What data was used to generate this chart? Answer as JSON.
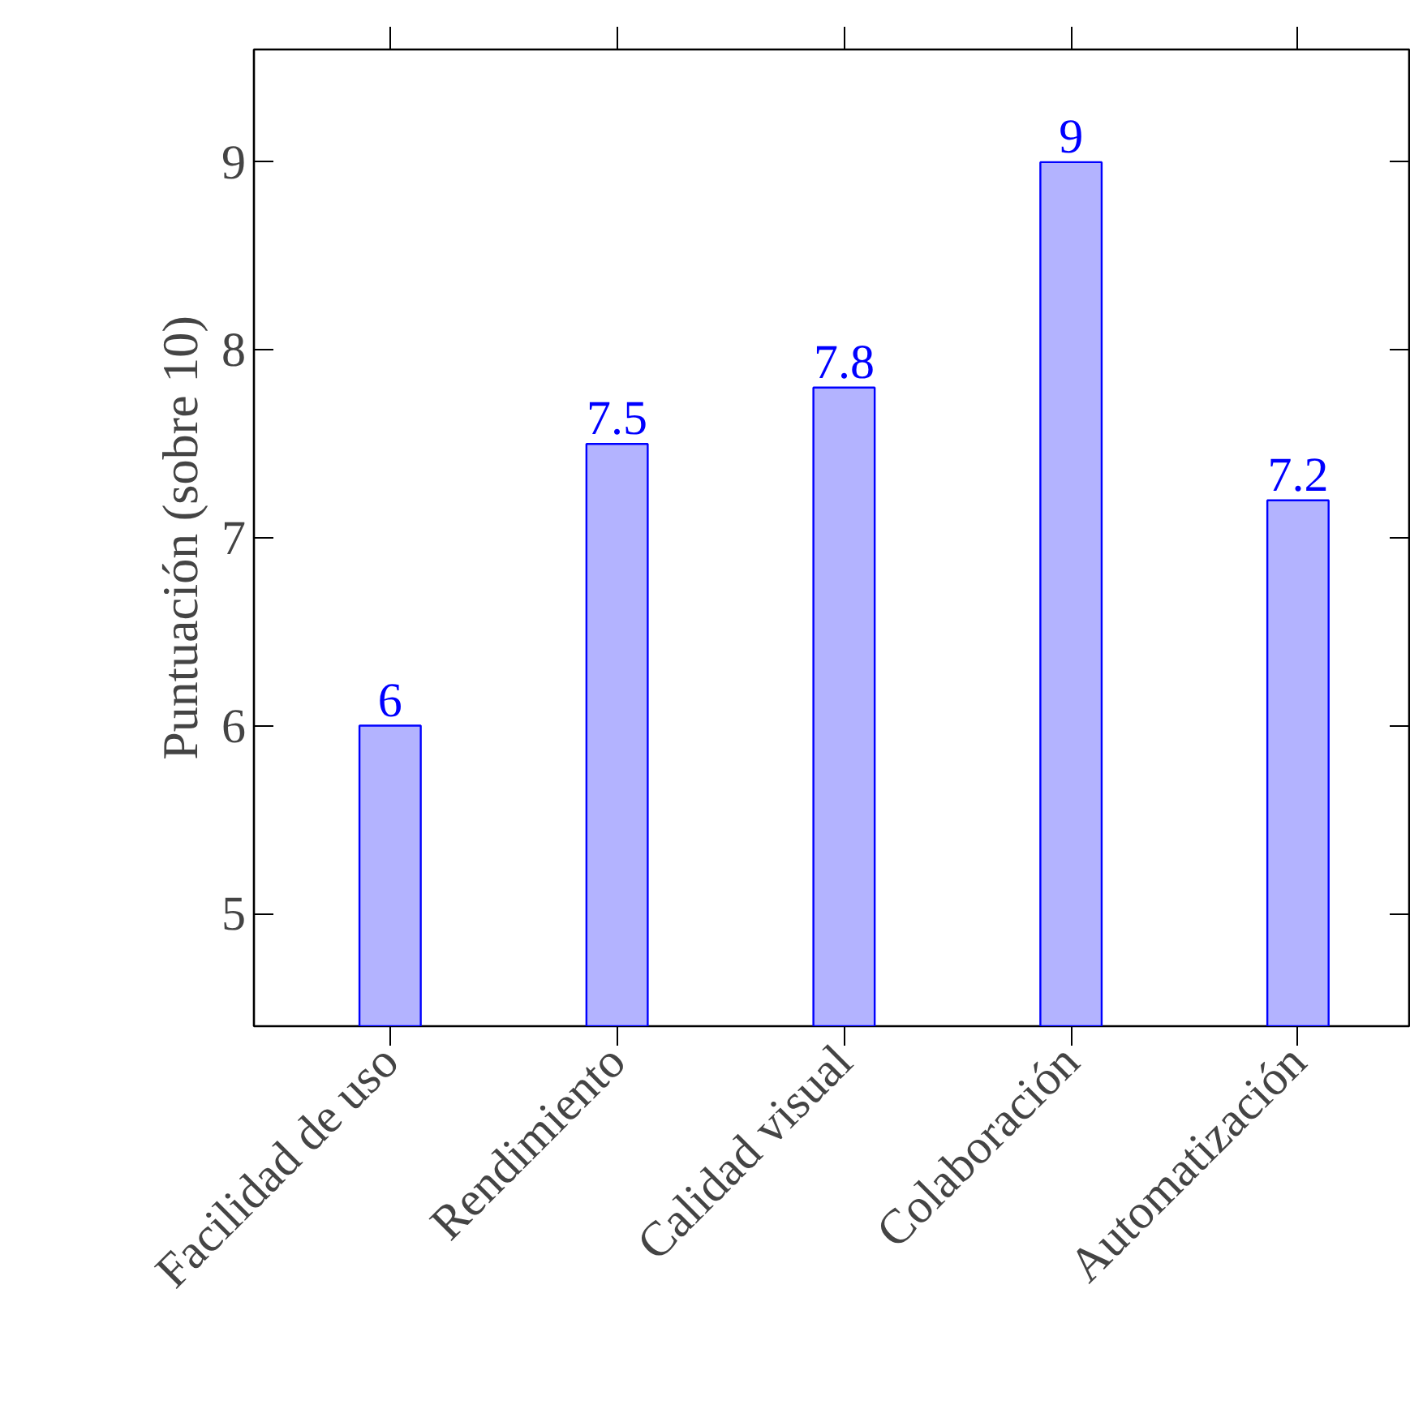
{
  "chart_data": {
    "type": "bar",
    "ylabel": "Puntuación (sobre 10)",
    "categories": [
      "Facilidad de uso",
      "Rendimiento",
      "Calidad visual",
      "Colaboración",
      "Automatización"
    ],
    "values": [
      6,
      7.5,
      7.8,
      9,
      7.2
    ],
    "color": "#b3b3ff",
    "ylim": [
      4.4,
      9.6
    ],
    "yticks": [
      5,
      6,
      7,
      8,
      9
    ],
    "data_labels": true,
    "grid": false
  }
}
